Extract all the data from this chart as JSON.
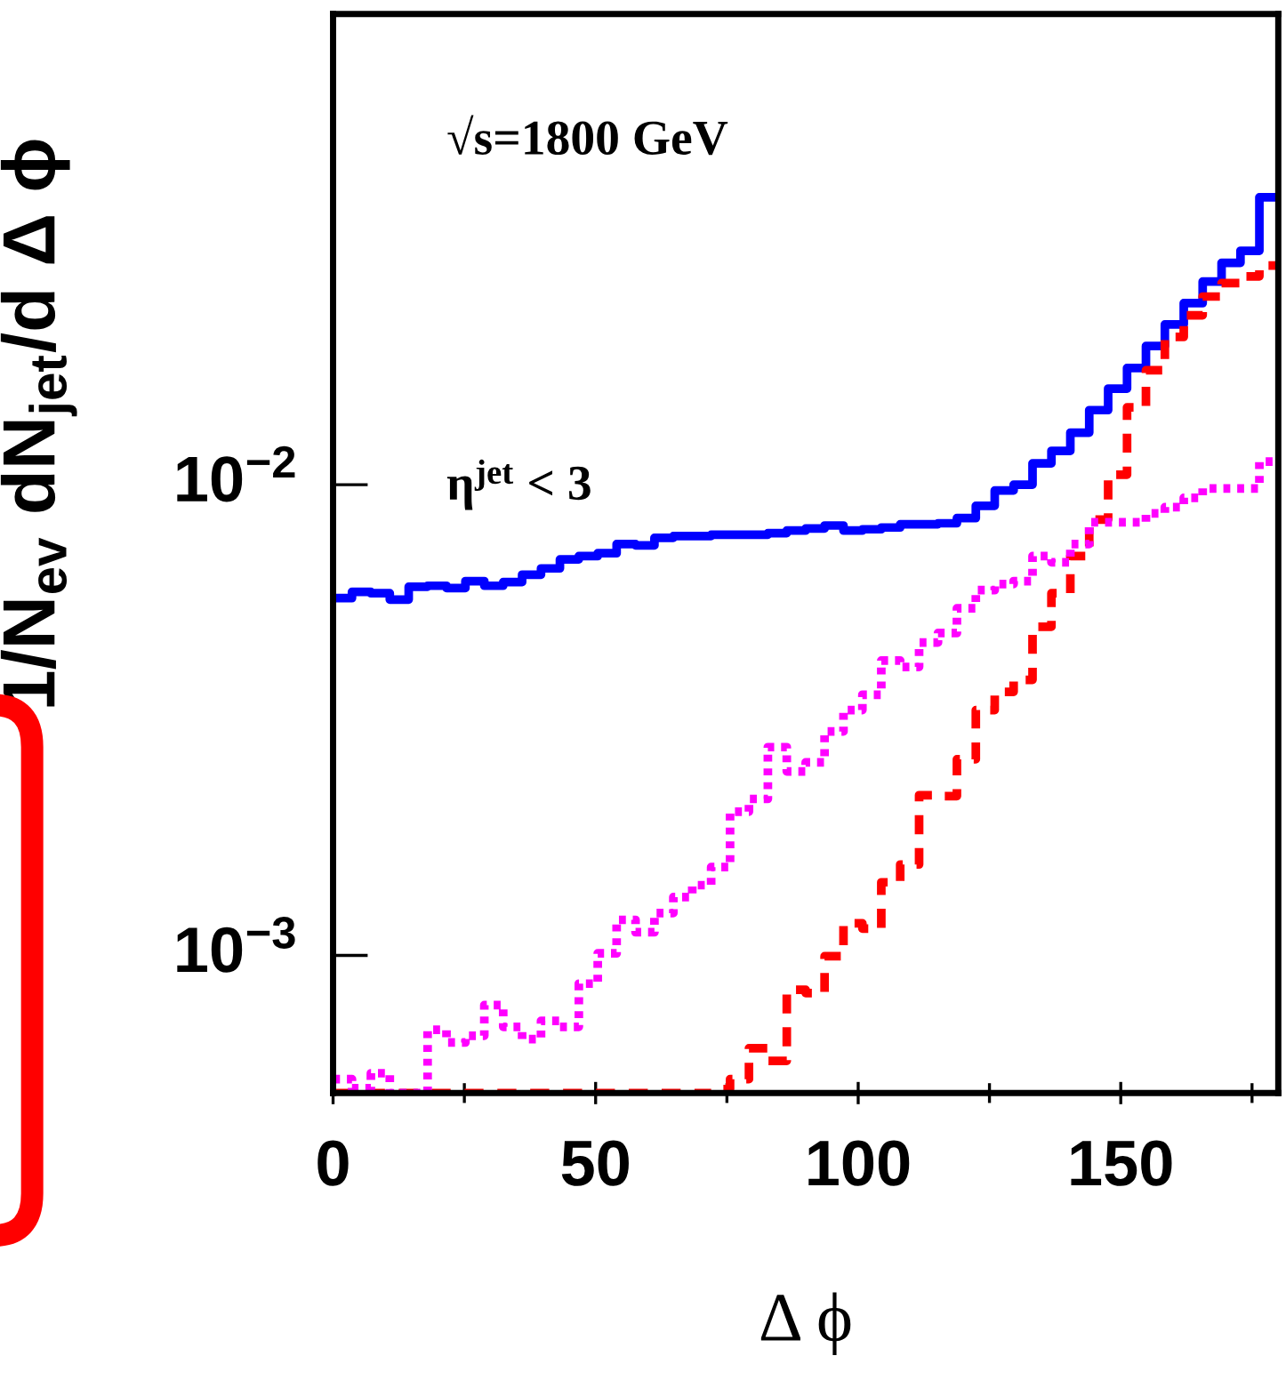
{
  "chart_data": {
    "type": "histogram",
    "xlabel": "Δ ϕ",
    "ylabel": "1/N$_{ev}$ dN$_{jet}$/d Δ ϕ",
    "annotations": [
      "√s=1800 GeV",
      "η$^{jet}$ < 3"
    ],
    "bins": [
      0,
      3.6,
      7.2,
      10.8,
      14.4,
      18,
      21.6,
      25.2,
      28.8,
      32.4,
      36,
      39.6,
      43.2,
      46.8,
      50.4,
      54,
      57.6,
      61.2,
      64.8,
      68.4,
      72,
      75.6,
      79.2,
      82.8,
      86.4,
      90,
      93.6,
      97.2,
      100.8,
      104.4,
      108,
      111.6,
      115.2,
      118.8,
      122.4,
      126,
      129.6,
      133.2,
      136.8,
      140.4,
      144,
      147.6,
      151.2,
      154.8,
      158.4,
      162,
      165.6,
      169.2,
      172.8,
      176.4,
      180
    ],
    "series": [
      {
        "color": "#0000ff",
        "line_style": "solid",
        "values": [
          0.00574,
          0.00592,
          0.00588,
          0.0057,
          0.00607,
          0.0061,
          0.00603,
          0.00624,
          0.0061,
          0.00621,
          0.00644,
          0.00664,
          0.00694,
          0.00705,
          0.00715,
          0.00748,
          0.00743,
          0.00771,
          0.00778,
          0.00778,
          0.00783,
          0.00783,
          0.00783,
          0.00789,
          0.00799,
          0.00807,
          0.00819,
          0.00799,
          0.00804,
          0.00811,
          0.00824,
          0.00824,
          0.00828,
          0.00849,
          0.00902,
          0.00972,
          0.01,
          0.0111,
          0.0118,
          0.0129,
          0.0144,
          0.016,
          0.0177,
          0.0197,
          0.0219,
          0.0243,
          0.027,
          0.0296,
          0.0314,
          0.0408
        ]
      },
      {
        "color": "#ff0000",
        "line_style": "dashed",
        "values": [
          null,
          null,
          null,
          null,
          null,
          null,
          null,
          null,
          null,
          null,
          null,
          null,
          null,
          null,
          null,
          null,
          null,
          null,
          null,
          null,
          0.00052,
          0.000546,
          0.000635,
          0.000597,
          0.000845,
          0.000832,
          0.000996,
          0.00117,
          0.00114,
          0.00143,
          0.00156,
          0.00219,
          0.00218,
          0.00261,
          0.00332,
          0.00363,
          0.00385,
          0.00499,
          0.00588,
          0.00705,
          0.00843,
          0.0105,
          0.0146,
          0.0175,
          0.0206,
          0.0229,
          0.0251,
          0.0268,
          0.0277,
          0.0292
        ]
      },
      {
        "color": "#ff00ff",
        "line_style": "dotted",
        "values": [
          0.000546,
          0.000522,
          0.000562,
          null,
          null,
          0.000695,
          0.000653,
          0.000675,
          0.000784,
          0.000705,
          0.000664,
          0.000726,
          0.000705,
          0.000871,
          0.00101,
          0.00119,
          0.00112,
          0.00123,
          0.00133,
          0.00141,
          0.00154,
          0.00202,
          0.00215,
          0.00277,
          0.00246,
          0.00257,
          0.00299,
          0.00332,
          0.00358,
          0.00423,
          0.0041,
          0.00462,
          0.00484,
          0.00546,
          0.00597,
          0.00615,
          0.00624,
          0.00705,
          0.00684,
          0.00748,
          0.00832,
          0.00832,
          0.00832,
          0.00869,
          0.00896,
          0.00938,
          0.00982,
          0.00982,
          0.00982,
          0.0112
        ]
      }
    ],
    "log": "y",
    "xlim": [
      0,
      180
    ],
    "ylim": [
      0.00051,
      0.1
    ],
    "xticks": [
      0,
      {
        "value": 25,
        "label": null
      },
      50,
      {
        "value": 75,
        "label": null
      },
      100,
      {
        "value": 125,
        "label": null
      },
      150,
      {
        "value": 175,
        "label": null
      }
    ],
    "yticks": [
      {
        "value": 0.001,
        "label": "10$^{−3}$"
      },
      {
        "value": 0.01,
        "label": "10$^{−2}$"
      }
    ],
    "grid": false,
    "legend": false
  }
}
